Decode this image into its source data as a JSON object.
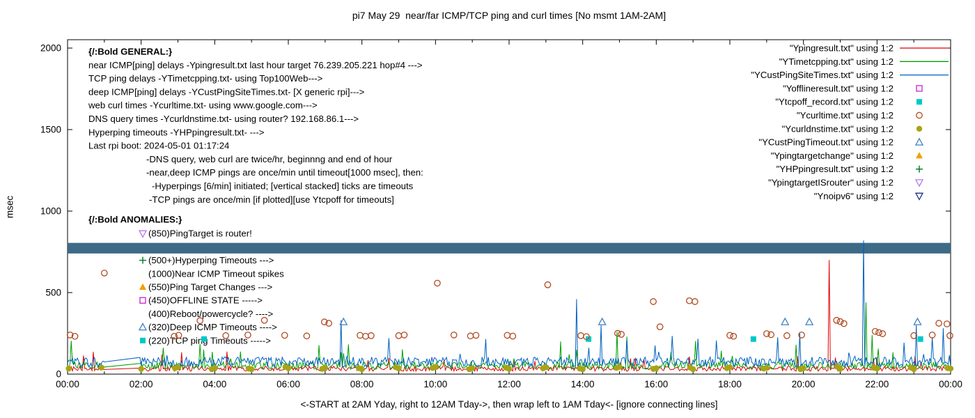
{
  "chart_data": {
    "type": "line",
    "title": "pi7 May 29  near/far ICMP/TCP ping and curl times [No msmt 1AM-2AM]",
    "xlabel": "<-START at 2AM Yday, right to 12AM Tday->, then wrap left to 1AM Tday<- [ignore connecting lines]",
    "ylabel": "msec",
    "x_range_hours": [
      0,
      24
    ],
    "y_range": [
      0,
      2000
    ],
    "x_ticks": [
      "00:00",
      "02:00",
      "04:00",
      "06:00",
      "08:00",
      "10:00",
      "12:00",
      "14:00",
      "16:00",
      "18:00",
      "20:00",
      "22:00",
      "00:00"
    ],
    "y_ticks": [
      0,
      500,
      1000,
      1500,
      2000
    ],
    "grid": false,
    "legend_position": "top-right",
    "seed": 77,
    "band": {
      "series": "Ynoipv6",
      "y_from": 740,
      "y_to": 805,
      "color": "#3d6a87"
    },
    "line_series": [
      {
        "name": "Ypingresult",
        "color": "#e00000",
        "base": 18,
        "amp": 30,
        "spike_p": 0.03,
        "spike_amp": 110,
        "spikes": [
          [
            20.7,
            700
          ]
        ]
      },
      {
        "name": "YTimetcpping",
        "color": "#00a000",
        "base": 30,
        "amp": 45,
        "spike_p": 0.05,
        "spike_amp": 150,
        "spikes": [
          [
            3.7,
            150
          ],
          [
            13.4,
            200
          ],
          [
            14.95,
            260
          ],
          [
            15.2,
            230
          ],
          [
            19.8,
            180
          ],
          [
            21.69,
            440
          ],
          [
            21.88,
            240
          ]
        ]
      },
      {
        "name": "YCustPingSiteTimes",
        "color": "#0060c0",
        "base": 45,
        "amp": 60,
        "spike_p": 0.06,
        "spike_amp": 190,
        "spikes": [
          [
            7.45,
            330
          ],
          [
            13.85,
            460
          ],
          [
            14.5,
            300
          ],
          [
            19.9,
            250
          ],
          [
            21.65,
            820
          ],
          [
            23.05,
            300
          ]
        ]
      }
    ],
    "marker_series": [
      {
        "name": "Yofflineresult",
        "shape": "square",
        "filled": false,
        "color": "#c820c8",
        "points": []
      },
      {
        "name": "Ytcpoff_record",
        "shape": "square",
        "filled": true,
        "color": "#00c8c8",
        "points": [
          [
            3.71,
            215
          ],
          [
            14.16,
            215
          ],
          [
            18.64,
            215
          ],
          [
            23.18,
            215
          ]
        ]
      },
      {
        "name": "Ycurltime",
        "shape": "circle",
        "filled": false,
        "color": "#b04a20",
        "points": [
          [
            0.07,
            240
          ],
          [
            0.2,
            232
          ],
          [
            1.0,
            620
          ],
          [
            2.9,
            232
          ],
          [
            3.02,
            238
          ],
          [
            3.6,
            328
          ],
          [
            4.3,
            236
          ],
          [
            4.9,
            240
          ],
          [
            5.35,
            330
          ],
          [
            5.9,
            238
          ],
          [
            6.5,
            234
          ],
          [
            6.98,
            320
          ],
          [
            7.1,
            312
          ],
          [
            7.95,
            238
          ],
          [
            8.1,
            232
          ],
          [
            8.25,
            236
          ],
          [
            9.0,
            236
          ],
          [
            9.15,
            240
          ],
          [
            10.05,
            558
          ],
          [
            10.5,
            240
          ],
          [
            10.95,
            234
          ],
          [
            11.1,
            238
          ],
          [
            11.95,
            238
          ],
          [
            12.1,
            233
          ],
          [
            13.05,
            548
          ],
          [
            13.95,
            236
          ],
          [
            14.1,
            230
          ],
          [
            14.95,
            250
          ],
          [
            15.05,
            244
          ],
          [
            15.92,
            445
          ],
          [
            16.1,
            290
          ],
          [
            16.9,
            450
          ],
          [
            17.05,
            445
          ],
          [
            18.0,
            238
          ],
          [
            18.1,
            232
          ],
          [
            19.0,
            248
          ],
          [
            19.12,
            242
          ],
          [
            19.55,
            236
          ],
          [
            19.95,
            240
          ],
          [
            20.9,
            330
          ],
          [
            21.0,
            322
          ],
          [
            21.1,
            310
          ],
          [
            21.95,
            262
          ],
          [
            22.05,
            255
          ],
          [
            22.15,
            248
          ],
          [
            23.0,
            236
          ],
          [
            23.5,
            240
          ],
          [
            23.68,
            312
          ],
          [
            23.9,
            308
          ],
          [
            23.98,
            236
          ]
        ]
      },
      {
        "name": "Ycurldnstime",
        "shape": "circle",
        "filled": true,
        "color": "#a8a416",
        "points": [
          [
            0.03,
            34
          ],
          [
            0.92,
            40
          ],
          [
            2.0,
            32
          ],
          [
            2.92,
            36
          ],
          [
            3.0,
            42
          ],
          [
            3.92,
            30
          ],
          [
            4.0,
            38
          ],
          [
            4.92,
            34
          ],
          [
            5.0,
            30
          ],
          [
            5.92,
            44
          ],
          [
            6.0,
            36
          ],
          [
            6.92,
            32
          ],
          [
            7.0,
            40
          ],
          [
            7.92,
            36
          ],
          [
            8.0,
            30
          ],
          [
            8.92,
            42
          ],
          [
            9.0,
            34
          ],
          [
            9.92,
            38
          ],
          [
            10.0,
            44
          ],
          [
            10.92,
            30
          ],
          [
            11.0,
            36
          ],
          [
            11.92,
            40
          ],
          [
            12.0,
            32
          ],
          [
            12.92,
            36
          ],
          [
            13.0,
            42
          ],
          [
            13.92,
            34
          ],
          [
            14.0,
            30
          ],
          [
            14.92,
            38
          ],
          [
            15.0,
            44
          ],
          [
            15.92,
            32
          ],
          [
            16.0,
            36
          ],
          [
            16.92,
            40
          ],
          [
            17.0,
            30
          ],
          [
            17.92,
            36
          ],
          [
            18.0,
            42
          ],
          [
            18.92,
            34
          ],
          [
            19.0,
            38
          ],
          [
            19.92,
            30
          ],
          [
            20.0,
            36
          ],
          [
            20.92,
            44
          ],
          [
            21.0,
            32
          ],
          [
            21.92,
            38
          ],
          [
            22.0,
            34
          ],
          [
            22.92,
            40
          ],
          [
            23.0,
            30
          ],
          [
            23.92,
            36
          ],
          [
            24.0,
            34
          ]
        ]
      },
      {
        "name": "YCustPingTimeout",
        "shape": "triangle-up",
        "filled": false,
        "color": "#4080c0",
        "points": [
          [
            7.5,
            320
          ],
          [
            14.53,
            320
          ],
          [
            19.5,
            320
          ],
          [
            20.16,
            320
          ],
          [
            23.1,
            320
          ]
        ]
      },
      {
        "name": "Ypingtargetchange",
        "shape": "triangle-up",
        "filled": true,
        "color": "#f0a000",
        "points": []
      },
      {
        "name": "YHPpingresult",
        "shape": "plus",
        "filled": false,
        "color": "#007820",
        "points": []
      },
      {
        "name": "YpingtargetISrouter",
        "shape": "triangle-down",
        "filled": false,
        "color": "#b478e6",
        "points": []
      },
      {
        "name": "Ynoipv6",
        "shape": "triangle-down",
        "filled": false,
        "color": "#1e3282",
        "points": []
      }
    ],
    "legend": [
      {
        "label": "\"Ypingresult.txt\" using 1:2",
        "sample": "line",
        "filled": false,
        "color": "#e00000"
      },
      {
        "label": "\"YTimetcpping.txt\" using 1:2",
        "sample": "line",
        "filled": false,
        "color": "#00a000"
      },
      {
        "label": "\"YCustPingSiteTimes.txt\" using 1:2",
        "sample": "line",
        "filled": false,
        "color": "#0060c0"
      },
      {
        "label": "\"Yofflineresult.txt\" using 1:2",
        "sample": "square",
        "filled": false,
        "color": "#c820c8"
      },
      {
        "label": "\"Ytcpoff_record.txt\" using 1:2",
        "sample": "square",
        "filled": true,
        "color": "#00c8c8"
      },
      {
        "label": "\"Ycurltime.txt\" using 1:2",
        "sample": "circle",
        "filled": false,
        "color": "#b04a20"
      },
      {
        "label": "\"Ycurldnstime.txt\" using 1:2",
        "sample": "circle",
        "filled": true,
        "color": "#a8a416"
      },
      {
        "label": "\"YCustPingTimeout.txt\" using 1:2",
        "sample": "triangle-up",
        "filled": false,
        "color": "#4080c0"
      },
      {
        "label": "\"Ypingtargetchange\" using 1:2",
        "sample": "triangle-up",
        "filled": true,
        "color": "#f0a000"
      },
      {
        "label": "\"YHPpingresult.txt\" using 1:2",
        "sample": "plus",
        "filled": false,
        "color": "#007820"
      },
      {
        "label": "\"YpingtargetISrouter\" using 1:2",
        "sample": "triangle-down",
        "filled": false,
        "color": "#b478e6"
      },
      {
        "label": "\"Ynoipv6\" using 1:2",
        "sample": "triangle-down",
        "filled": false,
        "color": "#1e3282"
      }
    ],
    "annotations": {
      "general": [
        {
          "t": "{/:Bold GENERAL:}",
          "i": 0,
          "b": true
        },
        {
          "t": "near ICMP[ping] delays -Ypingresult.txt last hour target 76.239.205.221 hop#4 --->",
          "i": 0
        },
        {
          "t": "TCP ping delays -YTimetcpping.txt- using Top100Web--->",
          "i": 0
        },
        {
          "t": "deep ICMP[ping] delays -YCustPingSiteTimes.txt- [X generic rpi]--->",
          "i": 0
        },
        {
          "t": "web curl times -Ycurltime.txt- using www.google.com--->",
          "i": 0
        },
        {
          "t": "DNS query times -Ycurldnstime.txt- using router? 192.168.86.1--->",
          "i": 0
        },
        {
          "t": "Hyperping timeouts -YHPpingresult.txt- --->",
          "i": 0
        },
        {
          "t": "Last rpi boot: 2024-05-01 01:17:24",
          "i": 0
        },
        {
          "t": "-DNS query, web curl are twice/hr, beginnng and end of hour",
          "i": 1
        },
        {
          "t": "-near,deep ICMP pings are once/min until timeout[1000 msec], then:",
          "i": 1
        },
        {
          "t": "-Hyperpings [6/min] initiated; [vertical stacked] ticks are timeouts",
          "i": 2
        },
        {
          "t": "-TCP pings are once/min [if plotted][use Ytcpoff for timeouts]",
          "i": 3
        }
      ],
      "anomalies_header": "{/:Bold ANOMALIES:}",
      "anomalies": [
        {
          "t": "(850)PingTarget is router!",
          "m": "triangle-down",
          "mf": false,
          "mc": "#b478e6"
        },
        {
          "t": "",
          "m": null
        },
        {
          "t": "(500+)Hyperping Timeouts --->",
          "m": "plus",
          "mf": false,
          "mc": "#007820"
        },
        {
          "t": "(1000)Near ICMP Timeout spikes",
          "m": null
        },
        {
          "t": "(550)Ping Target Changes --->",
          "m": "triangle-up",
          "mf": true,
          "mc": "#f0a000"
        },
        {
          "t": "(450)OFFLINE STATE ----->",
          "m": "square",
          "mf": false,
          "mc": "#c820c8"
        },
        {
          "t": "(400)Reboot/powercycle? ---->",
          "m": null
        },
        {
          "t": "(320)Deep ICMP Timeouts ---->",
          "m": "triangle-up",
          "mf": false,
          "mc": "#4080c0"
        },
        {
          "t": "(220)TCP ping Timeouts ----->",
          "m": "square",
          "mf": true,
          "mc": "#00c8c8"
        }
      ]
    }
  }
}
